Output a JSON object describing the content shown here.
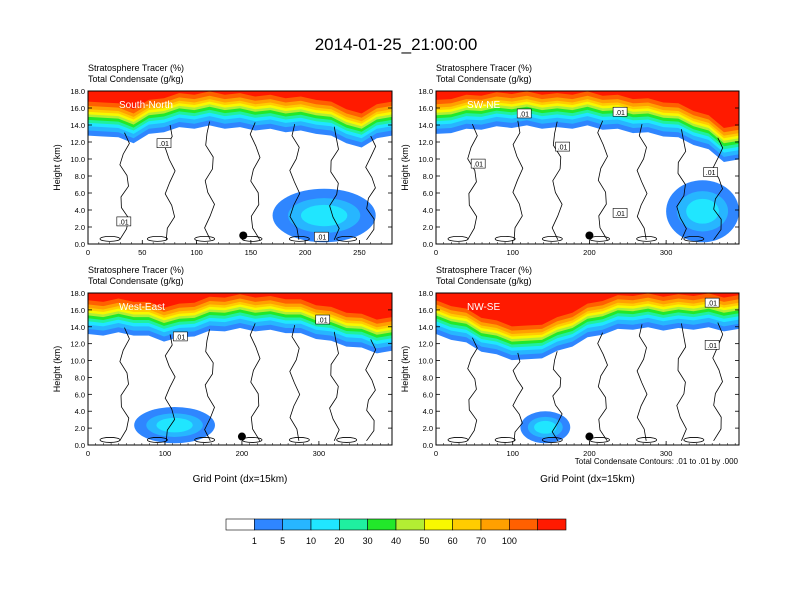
{
  "page_title": "2014-01-25_21:00:00",
  "footnote": "Total Condensate Contours: .01 to .01 by .000",
  "colorbar": {
    "colors": [
      "#ffffff",
      "#2f86ff",
      "#27b6ff",
      "#20e6ff",
      "#1ff0a0",
      "#22e82a",
      "#b3ee33",
      "#f8f800",
      "#ffcc00",
      "#ffa000",
      "#ff6000",
      "#ff1a00"
    ],
    "labels": [
      "1",
      "5",
      "10",
      "20",
      "30",
      "40",
      "50",
      "60",
      "70",
      "100"
    ]
  },
  "chart_data": [
    {
      "type": "heatmap",
      "panel": "South-North",
      "title_lines": [
        "Stratosphere Tracer   (%)",
        "Total Condensate   (g/kg)"
      ],
      "xlabel": "",
      "ylabel": "Height (km)",
      "xlim": [
        0,
        280
      ],
      "ylim": [
        0,
        18
      ],
      "xticks": [
        0,
        50,
        100,
        150,
        200,
        250
      ],
      "yticks": [
        0,
        2,
        4,
        6,
        8,
        10,
        12,
        14,
        16,
        18
      ],
      "tropopause_km": [
        14.8,
        15.0,
        14.6,
        14.2,
        15.0,
        15.5,
        15.8,
        15.9,
        16.0,
        15.9,
        15.8,
        15.7,
        15.6,
        15.5,
        15.4,
        15.3,
        14.8,
        14.2,
        13.4,
        14.8
      ],
      "marker": {
        "x": 143,
        "y": 1.0
      },
      "contour_labels": [
        {
          "text": ".01",
          "x": 70,
          "y": 11.8
        },
        {
          "text": ".01",
          "x": 33,
          "y": 2.6
        },
        {
          "text": ".01",
          "x": 215,
          "y": 0.8
        }
      ],
      "blobs": [
        {
          "x0": 170,
          "x1": 265,
          "y0": 0.2,
          "y1": 6.5
        }
      ]
    },
    {
      "type": "heatmap",
      "panel": "SW-NE",
      "title_lines": [
        "Stratosphere Tracer   (%)",
        "Total Condensate   (g/kg)"
      ],
      "xlabel": "",
      "ylabel": "Height (km)",
      "xlim": [
        0,
        395
      ],
      "ylim": [
        0,
        18
      ],
      "xticks": [
        0,
        100,
        200,
        300
      ],
      "yticks": [
        0,
        2,
        4,
        6,
        8,
        10,
        12,
        14,
        16,
        18
      ],
      "tropopause_km": [
        15.0,
        15.4,
        15.6,
        15.8,
        15.9,
        16.0,
        16.0,
        15.9,
        15.8,
        15.9,
        16.0,
        15.8,
        15.6,
        15.4,
        15.2,
        15.0,
        14.6,
        14.0,
        13.2,
        12.0
      ],
      "marker": {
        "x": 200,
        "y": 1.0
      },
      "contour_labels": [
        {
          "text": ".01",
          "x": 115,
          "y": 15.3
        },
        {
          "text": ".01",
          "x": 240,
          "y": 15.5
        },
        {
          "text": ".01",
          "x": 165,
          "y": 11.4
        },
        {
          "text": ".01",
          "x": 55,
          "y": 9.4
        },
        {
          "text": ".01",
          "x": 358,
          "y": 8.4
        },
        {
          "text": ".01",
          "x": 240,
          "y": 3.6
        }
      ],
      "blobs": [
        {
          "x0": 300,
          "x1": 395,
          "y0": 0.2,
          "y1": 7.5
        }
      ]
    },
    {
      "type": "heatmap",
      "panel": "West-East",
      "title_lines": [
        "Stratosphere Tracer   (%)",
        "Total Condensate   (g/kg)"
      ],
      "xlabel": "Grid Point (dx=15km)",
      "ylabel": "Height (km)",
      "xlim": [
        0,
        395
      ],
      "ylim": [
        0,
        18
      ],
      "xticks": [
        0,
        100,
        200,
        300
      ],
      "yticks": [
        0,
        2,
        4,
        6,
        8,
        10,
        12,
        14,
        16,
        18
      ],
      "tropopause_km": [
        15.2,
        15.3,
        15.4,
        15.3,
        15.0,
        14.6,
        14.8,
        15.2,
        15.6,
        15.8,
        15.9,
        15.8,
        15.7,
        15.6,
        15.3,
        14.9,
        14.4,
        14.0,
        13.6,
        13.2
      ],
      "marker": {
        "x": 200,
        "y": 1.0
      },
      "contour_labels": [
        {
          "text": ".01",
          "x": 120,
          "y": 12.8
        },
        {
          "text": ".01",
          "x": 305,
          "y": 14.8
        }
      ],
      "blobs": [
        {
          "x0": 60,
          "x1": 165,
          "y0": 0.2,
          "y1": 4.5
        }
      ]
    },
    {
      "type": "heatmap",
      "panel": "NW-SE",
      "title_lines": [
        "Stratosphere Tracer   (%)",
        "Total Condensate   (g/kg)"
      ],
      "xlabel": "Grid Point (dx=15km)",
      "ylabel": "Height (km)",
      "xlim": [
        0,
        395
      ],
      "ylim": [
        0,
        18
      ],
      "xticks": [
        0,
        100,
        200,
        300
      ],
      "yticks": [
        0,
        2,
        4,
        6,
        8,
        10,
        12,
        14,
        16,
        18
      ],
      "tropopause_km": [
        15.2,
        14.8,
        14.2,
        13.4,
        12.8,
        12.4,
        12.2,
        12.6,
        13.2,
        14.0,
        14.8,
        15.4,
        15.8,
        16.0,
        16.0,
        15.9,
        15.9,
        16.0,
        16.0,
        15.8
      ],
      "marker": {
        "x": 200,
        "y": 1.0
      },
      "contour_labels": [
        {
          "text": ".01",
          "x": 360,
          "y": 11.8
        },
        {
          "text": ".01",
          "x": 360,
          "y": 16.8
        }
      ],
      "blobs": [
        {
          "x0": 110,
          "x1": 175,
          "y0": 0.2,
          "y1": 4.0
        }
      ]
    }
  ]
}
